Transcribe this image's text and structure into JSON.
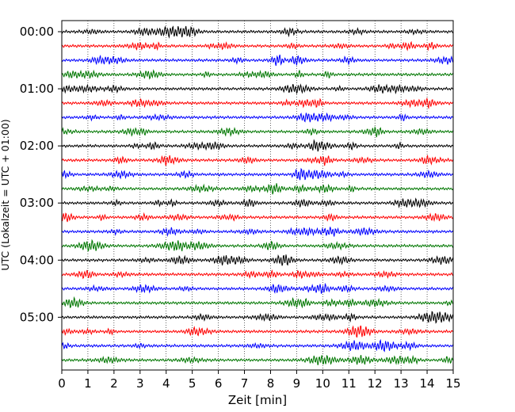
{
  "chart_data": {
    "type": "line",
    "title": "",
    "xlabel": "Zeit  [min]",
    "ylabel": "UTC (Lokalzeit = UTC + 01:00)",
    "xlim": [
      0,
      15
    ],
    "x_ticks": [
      "0",
      "1",
      "2",
      "3",
      "4",
      "5",
      "6",
      "7",
      "8",
      "9",
      "10",
      "11",
      "12",
      "13",
      "14",
      "15"
    ],
    "y_ticks": [
      "00:00",
      "01:00",
      "02:00",
      "03:00",
      "04:00",
      "05:00"
    ],
    "rows_per_hour": 4,
    "row_count": 24,
    "trace_colors": [
      "#000000",
      "#ff0000",
      "#0000ff",
      "#007700"
    ],
    "grid": "vertical dotted",
    "series": [
      {
        "start": "00:00"
      },
      {
        "start": "00:15"
      },
      {
        "start": "00:30"
      },
      {
        "start": "00:45"
      },
      {
        "start": "01:00"
      },
      {
        "start": "01:15"
      },
      {
        "start": "01:30"
      },
      {
        "start": "01:45"
      },
      {
        "start": "02:00"
      },
      {
        "start": "02:15"
      },
      {
        "start": "02:30"
      },
      {
        "start": "02:45"
      },
      {
        "start": "03:00"
      },
      {
        "start": "03:15"
      },
      {
        "start": "03:30"
      },
      {
        "start": "03:45"
      },
      {
        "start": "04:00"
      },
      {
        "start": "04:15"
      },
      {
        "start": "04:30"
      },
      {
        "start": "04:45"
      },
      {
        "start": "05:00"
      },
      {
        "start": "05:15"
      },
      {
        "start": "05:30"
      },
      {
        "start": "05:45"
      }
    ]
  }
}
